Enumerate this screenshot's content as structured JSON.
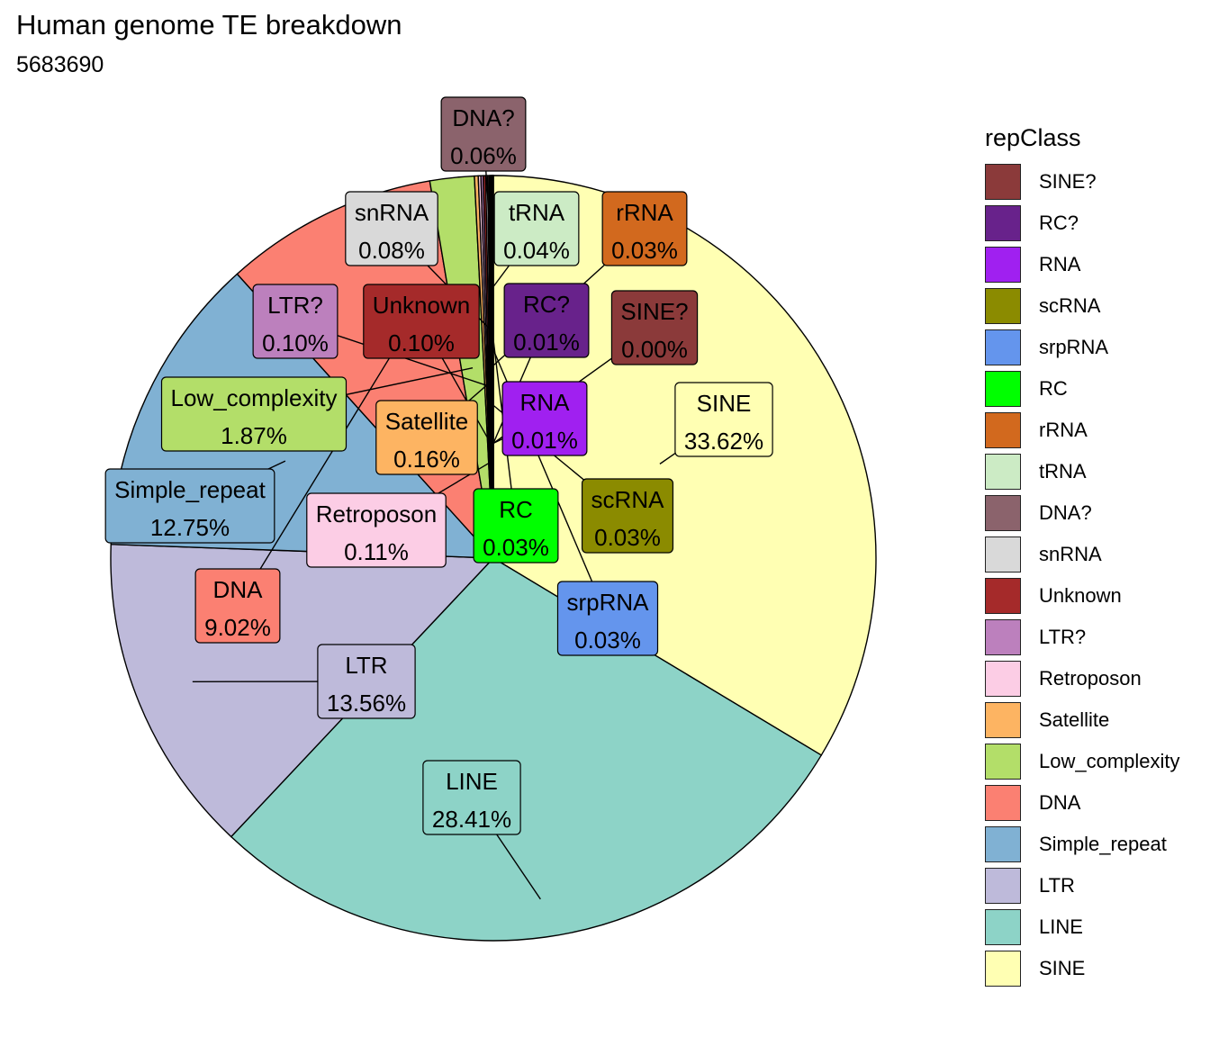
{
  "title": "Human genome TE breakdown",
  "subtitle": "5683690",
  "chart_data": {
    "type": "pie",
    "legend_title": "repClass",
    "legend_position": "right",
    "slices": [
      {
        "label": "SINE",
        "percent": 33.62,
        "percent_label": "33.62%",
        "color": "#FFFFB3",
        "label_pos": [
          804,
          466
        ],
        "anchor_r": 0.5
      },
      {
        "label": "LINE",
        "percent": 28.41,
        "percent_label": "28.41%",
        "color": "#8DD3C7",
        "label_pos": [
          524,
          886
        ],
        "anchor_r": 0.9
      },
      {
        "label": "LTR",
        "percent": 13.56,
        "percent_label": "13.56%",
        "color": "#BEBADA",
        "label_pos": [
          407,
          757
        ],
        "anchor_r": 0.85
      },
      {
        "label": "Simple_repeat",
        "percent": 12.75,
        "percent_label": "12.75%",
        "color": "#80B1D3",
        "label_pos": [
          211,
          562
        ],
        "anchor_r": 0.6
      },
      {
        "label": "DNA",
        "percent": 9.02,
        "percent_label": "9.02%",
        "color": "#FB8072",
        "label_pos": [
          264,
          673
        ],
        "anchor_r": 0.6
      },
      {
        "label": "Low_complexity",
        "percent": 1.87,
        "percent_label": "1.87%",
        "color": "#B3DE69",
        "label_pos": [
          282,
          460
        ],
        "anchor_r": 0.5
      },
      {
        "label": "Satellite",
        "percent": 0.16,
        "percent_label": "0.16%",
        "color": "#FDB462",
        "label_pos": [
          474,
          486
        ],
        "anchor_r": 0.45
      },
      {
        "label": "Retroposon",
        "percent": 0.11,
        "percent_label": "0.11%",
        "color": "#FCCDE5",
        "label_pos": [
          418,
          589
        ],
        "anchor_r": 0.25
      },
      {
        "label": "LTR?",
        "percent": 0.1,
        "percent_label": "0.10%",
        "color": "#BC80BD",
        "label_pos": [
          328,
          357
        ],
        "anchor_r": 0.45
      },
      {
        "label": "Unknown",
        "percent": 0.1,
        "percent_label": "0.10%",
        "color": "#A52A2A",
        "label_pos": [
          468,
          357
        ],
        "anchor_r": 0.3
      },
      {
        "label": "snRNA",
        "percent": 0.08,
        "percent_label": "0.08%",
        "color": "#D9D9D9",
        "label_pos": [
          435,
          254
        ],
        "anchor_r": 0.6
      },
      {
        "label": "DNA?",
        "percent": 0.06,
        "percent_label": "0.06%",
        "color": "#8B636C",
        "label_pos": [
          537,
          149
        ],
        "anchor_r": 0.9
      },
      {
        "label": "tRNA",
        "percent": 0.04,
        "percent_label": "0.04%",
        "color": "#CCEBC5",
        "label_pos": [
          596,
          254
        ],
        "anchor_r": 0.7
      },
      {
        "label": "rRNA",
        "percent": 0.03,
        "percent_label": "0.03%",
        "color": "#D2691E",
        "label_pos": [
          716,
          254
        ],
        "anchor_r": 0.5
      },
      {
        "label": "RC",
        "percent": 0.03,
        "percent_label": "0.03%",
        "color": "#00FF00",
        "label_pos": [
          573,
          584
        ],
        "anchor_r": 0.6
      },
      {
        "label": "srpRNA",
        "percent": 0.03,
        "percent_label": "0.03%",
        "color": "#6495ED",
        "label_pos": [
          675,
          687
        ],
        "anchor_r": 0.55
      },
      {
        "label": "scRNA",
        "percent": 0.03,
        "percent_label": "0.03%",
        "color": "#8B8B00",
        "label_pos": [
          697,
          573
        ],
        "anchor_r": 0.4
      },
      {
        "label": "RNA",
        "percent": 0.01,
        "percent_label": "0.01%",
        "color": "#A020F0",
        "label_pos": [
          605,
          465
        ],
        "anchor_r": 0.3
      },
      {
        "label": "RC?",
        "percent": 0.01,
        "percent_label": "0.01%",
        "color": "#68228B",
        "label_pos": [
          607,
          356
        ],
        "anchor_r": 0.3
      },
      {
        "label": "SINE?",
        "percent": 0.0,
        "percent_label": "0.00%",
        "color": "#8B3A3A",
        "label_pos": [
          727,
          364
        ],
        "anchor_r": 0.3
      }
    ],
    "legend_order": [
      "SINE?",
      "RC?",
      "RNA",
      "scRNA",
      "srpRNA",
      "RC",
      "rRNA",
      "tRNA",
      "DNA?",
      "snRNA",
      "Unknown",
      "LTR?",
      "Retroposon",
      "Satellite",
      "Low_complexity",
      "DNA",
      "Simple_repeat",
      "LTR",
      "LINE",
      "SINE"
    ]
  }
}
